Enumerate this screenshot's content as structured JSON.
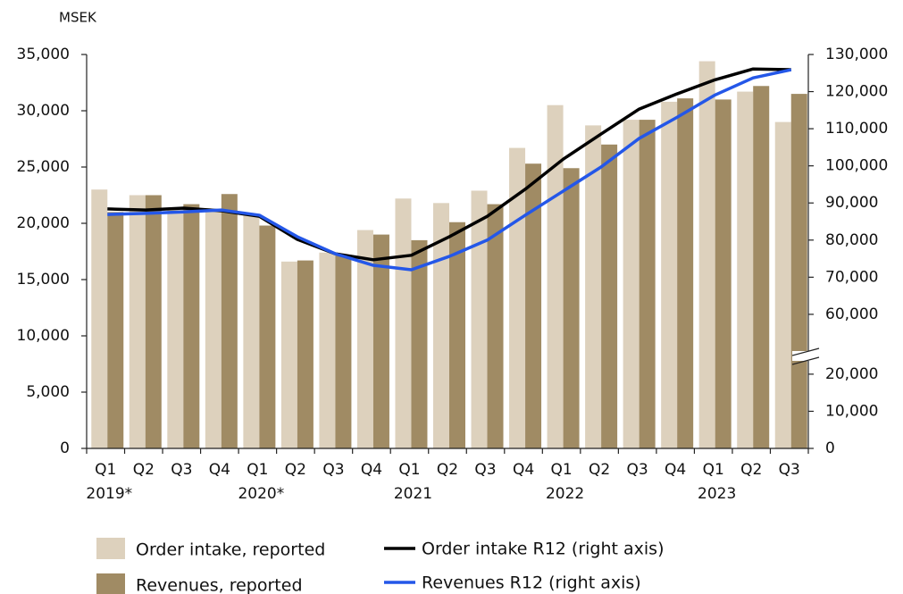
{
  "chart_data": {
    "type": "bar_line",
    "unit_label": "MSEK",
    "categories": [
      "Q1",
      "Q2",
      "Q3",
      "Q4",
      "Q1",
      "Q2",
      "Q3",
      "Q4",
      "Q1",
      "Q2",
      "Q3",
      "Q4",
      "Q1",
      "Q2",
      "Q3",
      "Q4",
      "Q1",
      "Q2",
      "Q3"
    ],
    "category_groups": [
      "2019*",
      null,
      null,
      null,
      "2020*",
      null,
      null,
      null,
      "2021",
      null,
      null,
      null,
      "2022",
      null,
      null,
      null,
      "2023",
      null,
      null
    ],
    "series": [
      {
        "name": "Order intake, reported",
        "kind": "bar",
        "color": "#ddd1bd",
        "values": [
          23000,
          22500,
          21400,
          21200,
          20800,
          16600,
          17400,
          19400,
          22200,
          21800,
          22900,
          26700,
          30500,
          28700,
          29200,
          30800,
          34400,
          31700,
          29000
        ]
      },
      {
        "name": "Revenues, reported",
        "kind": "bar",
        "color": "#a08b64",
        "values": [
          21000,
          22500,
          21700,
          22600,
          19800,
          16700,
          17200,
          19000,
          18500,
          20100,
          21700,
          25300,
          24900,
          27000,
          29200,
          31100,
          31000,
          32200,
          31500
        ]
      },
      {
        "name": "Order intake R12 (right axis)",
        "kind": "line",
        "axis": "y2",
        "color": "#000000",
        "values": [
          88400,
          88100,
          88600,
          87900,
          86400,
          80200,
          76300,
          74700,
          75900,
          80900,
          86400,
          93700,
          101800,
          108600,
          115300,
          119400,
          123200,
          126100,
          125900
        ]
      },
      {
        "name": "Revenues R12 (right axis)",
        "kind": "line",
        "axis": "y2",
        "color": "#2457e8",
        "values": [
          86900,
          87200,
          87600,
          88100,
          86700,
          80900,
          76300,
          73200,
          72000,
          75600,
          80000,
          86700,
          93200,
          99700,
          107400,
          113100,
          119100,
          123700,
          125900
        ]
      }
    ],
    "ylim": [
      0,
      35000
    ],
    "yticks": [
      0,
      {
        "value": 5000,
        "label": "5,000"
      },
      {
        "value": 10000,
        "label": "10,000"
      },
      {
        "value": 15000,
        "label": "15,000"
      },
      {
        "value": 20000,
        "label": "20,000"
      },
      {
        "value": 25000,
        "label": "25,000"
      },
      {
        "value": 30000,
        "label": "30,000"
      },
      {
        "value": 35000,
        "label": "35,000"
      }
    ],
    "y2lim": [
      0,
      130000
    ],
    "y2_break": [
      20000,
      60000
    ],
    "y2ticks": [
      0,
      {
        "value": 10000,
        "label": "10,000"
      },
      {
        "value": 20000,
        "label": "20,000"
      },
      {
        "value": 60000,
        "label": "60,000"
      },
      {
        "value": 70000,
        "label": "70,000"
      },
      {
        "value": 80000,
        "label": "80,000"
      },
      {
        "value": 90000,
        "label": "90,000"
      },
      {
        "value": 100000,
        "label": "100,000"
      },
      {
        "value": 110000,
        "label": "110,000"
      },
      {
        "value": 120000,
        "label": "120,000"
      },
      {
        "value": 130000,
        "label": "130,000"
      }
    ]
  }
}
